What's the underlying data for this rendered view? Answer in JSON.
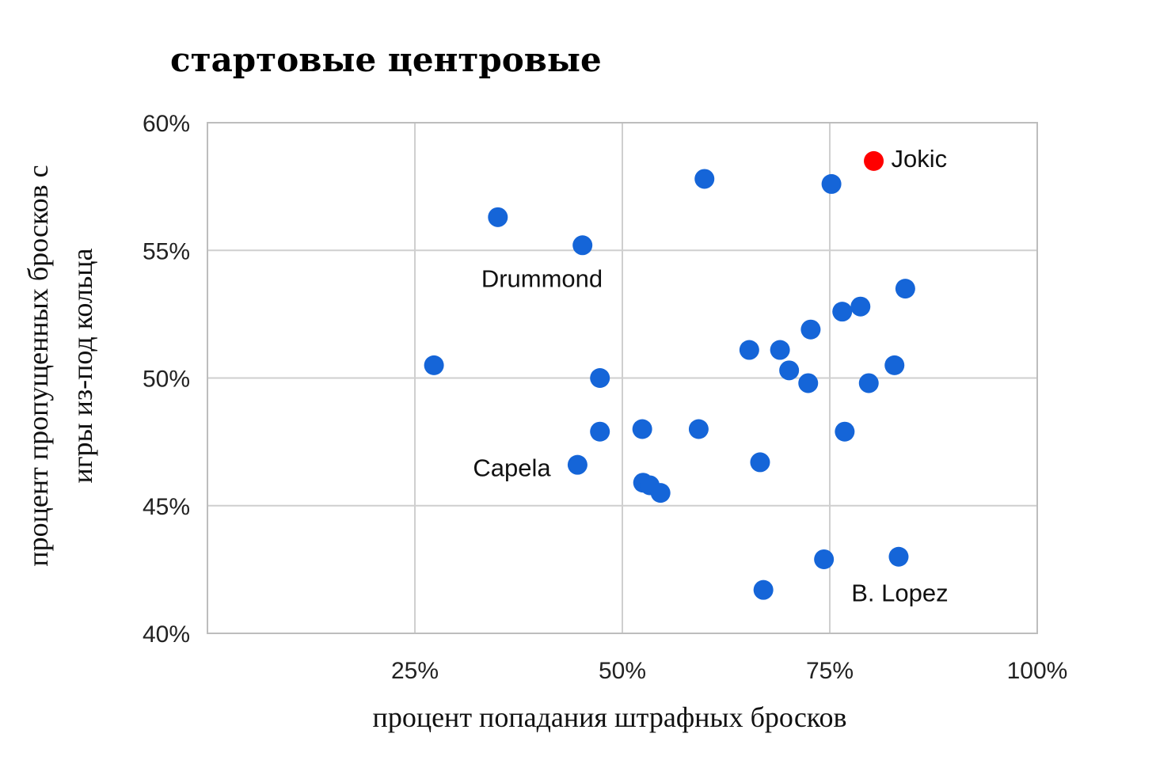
{
  "chart_data": {
    "type": "scatter",
    "title": "стартовые центровые",
    "xlabel": "процент попадания штрафных бросков",
    "ylabel_lines": [
      "процент пропущенных бросков с",
      "игры из-под кольца"
    ],
    "xlim": [
      0,
      100
    ],
    "ylim": [
      40,
      60
    ],
    "x_ticks": [
      {
        "value": 25,
        "label": "25%"
      },
      {
        "value": 50,
        "label": "50%"
      },
      {
        "value": 75,
        "label": "75%"
      },
      {
        "value": 100,
        "label": "100%"
      }
    ],
    "y_ticks": [
      {
        "value": 60,
        "label": "60%"
      },
      {
        "value": 55,
        "label": "55%"
      },
      {
        "value": 50,
        "label": "50%"
      },
      {
        "value": 45,
        "label": "45%"
      },
      {
        "value": 40,
        "label": "40%"
      }
    ],
    "grid": true,
    "colors": {
      "default": "#1565d8",
      "highlight": "#ff0000"
    },
    "points": [
      {
        "x": 80.3,
        "y": 58.5,
        "highlight": true
      },
      {
        "x": 59.9,
        "y": 57.8
      },
      {
        "x": 75.2,
        "y": 57.6
      },
      {
        "x": 35.0,
        "y": 56.3
      },
      {
        "x": 45.2,
        "y": 55.2
      },
      {
        "x": 84.1,
        "y": 53.5
      },
      {
        "x": 78.7,
        "y": 52.8
      },
      {
        "x": 76.5,
        "y": 52.6
      },
      {
        "x": 72.7,
        "y": 51.9
      },
      {
        "x": 65.3,
        "y": 51.1
      },
      {
        "x": 69.0,
        "y": 51.1
      },
      {
        "x": 70.1,
        "y": 50.3
      },
      {
        "x": 72.4,
        "y": 49.8
      },
      {
        "x": 79.7,
        "y": 49.8
      },
      {
        "x": 82.8,
        "y": 50.5
      },
      {
        "x": 27.3,
        "y": 50.5
      },
      {
        "x": 47.3,
        "y": 50.0
      },
      {
        "x": 47.3,
        "y": 47.9
      },
      {
        "x": 52.4,
        "y": 48.0
      },
      {
        "x": 59.2,
        "y": 48.0
      },
      {
        "x": 76.8,
        "y": 47.9
      },
      {
        "x": 44.6,
        "y": 46.6
      },
      {
        "x": 66.6,
        "y": 46.7
      },
      {
        "x": 52.5,
        "y": 45.9
      },
      {
        "x": 53.3,
        "y": 45.8
      },
      {
        "x": 54.6,
        "y": 45.5
      },
      {
        "x": 74.3,
        "y": 42.9
      },
      {
        "x": 83.3,
        "y": 43.0
      },
      {
        "x": 67.0,
        "y": 41.7
      }
    ],
    "annotations": [
      {
        "text": "Jokic",
        "x": 82.4,
        "y": 58.6,
        "anchor": "start"
      },
      {
        "text": "Drummond",
        "x": 33.0,
        "y": 53.9,
        "anchor": "start"
      },
      {
        "text": "Capela",
        "x": 32.0,
        "y": 46.5,
        "anchor": "start"
      },
      {
        "text": "B. Lopez",
        "x": 77.6,
        "y": 41.6,
        "anchor": "start"
      }
    ]
  }
}
